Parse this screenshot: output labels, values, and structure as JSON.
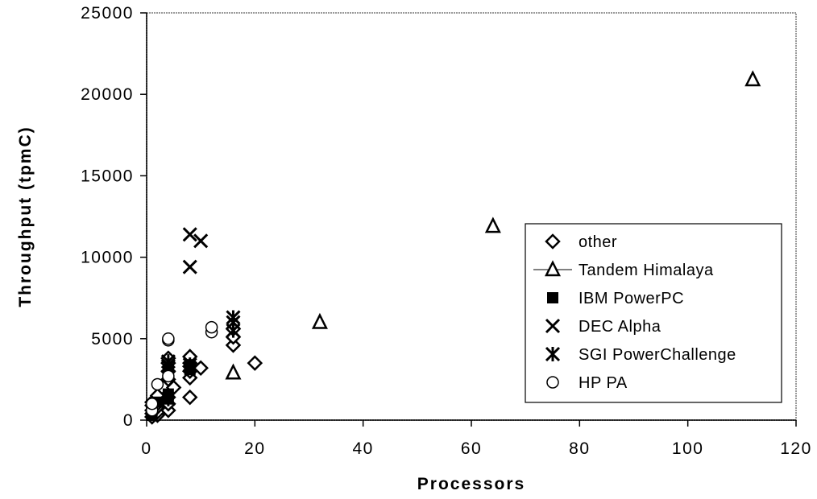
{
  "chart_data": {
    "type": "scatter",
    "xlabel": "Processors",
    "ylabel": "Throughput    (tpmC)",
    "xlim": [
      0,
      120
    ],
    "ylim": [
      0,
      25000
    ],
    "xticks": [
      0,
      20,
      40,
      60,
      80,
      100,
      120
    ],
    "yticks": [
      0,
      5000,
      10000,
      15000,
      20000,
      25000
    ],
    "grid": false,
    "legend_position": "lower-right",
    "series": [
      {
        "name": "other",
        "marker": "diamond",
        "points": [
          [
            1,
            200
          ],
          [
            1,
            400
          ],
          [
            1,
            600
          ],
          [
            1,
            900
          ],
          [
            1,
            1100
          ],
          [
            2,
            300
          ],
          [
            2,
            500
          ],
          [
            2,
            800
          ],
          [
            2,
            1000
          ],
          [
            2,
            1300
          ],
          [
            2,
            1500
          ],
          [
            4,
            600
          ],
          [
            4,
            1000
          ],
          [
            4,
            1400
          ],
          [
            4,
            2500
          ],
          [
            4,
            3000
          ],
          [
            4,
            3500
          ],
          [
            4,
            3800
          ],
          [
            5,
            2000
          ],
          [
            8,
            1400
          ],
          [
            8,
            2600
          ],
          [
            8,
            3000
          ],
          [
            8,
            3300
          ],
          [
            8,
            3500
          ],
          [
            8,
            3900
          ],
          [
            10,
            3200
          ],
          [
            16,
            4600
          ],
          [
            16,
            5100
          ],
          [
            16,
            5600
          ],
          [
            20,
            3500
          ]
        ]
      },
      {
        "name": "Tandem Himalaya",
        "marker": "triangle",
        "points": [
          [
            16,
            2900
          ],
          [
            32,
            6000
          ],
          [
            64,
            11900
          ],
          [
            112,
            20900
          ]
        ]
      },
      {
        "name": "IBM PowerPC",
        "marker": "square",
        "points": [
          [
            1,
            300
          ],
          [
            1,
            700
          ],
          [
            2,
            1100
          ],
          [
            4,
            1300
          ],
          [
            4,
            1600
          ],
          [
            4,
            3100
          ],
          [
            8,
            3100
          ],
          [
            8,
            3400
          ]
        ]
      },
      {
        "name": "DEC Alpha",
        "marker": "x",
        "points": [
          [
            4,
            3300
          ],
          [
            8,
            9400
          ],
          [
            8,
            11400
          ],
          [
            10,
            11000
          ]
        ]
      },
      {
        "name": "SGI PowerChallenge",
        "marker": "star",
        "points": [
          [
            4,
            1300
          ],
          [
            4,
            3300
          ],
          [
            4,
            3600
          ],
          [
            8,
            3400
          ],
          [
            16,
            5500
          ],
          [
            16,
            6000
          ],
          [
            16,
            6300
          ]
        ]
      },
      {
        "name": "HP PA",
        "marker": "circle",
        "points": [
          [
            1,
            600
          ],
          [
            1,
            1000
          ],
          [
            2,
            2200
          ],
          [
            4,
            2700
          ],
          [
            4,
            4900
          ],
          [
            4,
            5000
          ],
          [
            12,
            5400
          ],
          [
            12,
            5700
          ]
        ]
      }
    ]
  }
}
